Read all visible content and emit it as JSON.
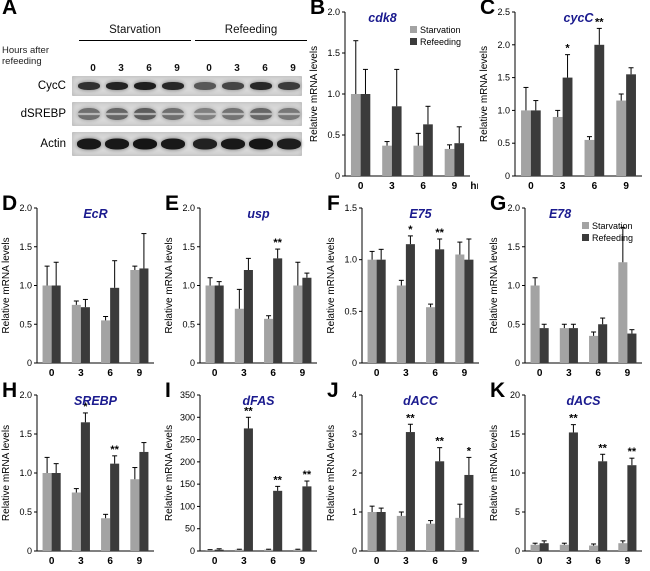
{
  "colors": {
    "starvation": "#a3a3a3",
    "refeeding": "#3b3b3b",
    "title": "#1a1a8e"
  },
  "panel_a": {
    "label": "A",
    "group_headers": [
      "Starvation",
      "Refeeding"
    ],
    "axis_label": "Hours after refeeding",
    "lane_timepoints": [
      "0",
      "3",
      "6",
      "9",
      "0",
      "3",
      "6",
      "9"
    ],
    "blot_rows": [
      "CycC",
      "dSREBP",
      "Actin"
    ]
  },
  "chart_data": [
    {
      "panel": "B",
      "type": "bar",
      "title": "cdk8",
      "ylabel": "Relative mRNA levels",
      "ylim": [
        0,
        2.0
      ],
      "yticks": [
        "0",
        "0.5",
        "1.0",
        "1.5",
        "2.0"
      ],
      "categories": [
        "0",
        "3",
        "6",
        "9"
      ],
      "xsuffix": "hr",
      "show_legend": true,
      "series": [
        {
          "name": "Starvation",
          "values": [
            1.0,
            0.37,
            0.37,
            0.33
          ],
          "errors": [
            0.65,
            0.05,
            0.15,
            0.05
          ]
        },
        {
          "name": "Refeeding",
          "values": [
            1.0,
            0.85,
            0.63,
            0.4
          ],
          "errors": [
            0.3,
            0.45,
            0.22,
            0.2
          ]
        }
      ],
      "stars": [
        "",
        "",
        "",
        ""
      ]
    },
    {
      "panel": "C",
      "type": "bar",
      "title": "cycC",
      "ylabel": "Relative mRNA levels",
      "ylim": [
        0,
        2.5
      ],
      "yticks": [
        "0",
        "0.5",
        "1.0",
        "1.5",
        "2.0",
        "2.5"
      ],
      "categories": [
        "0",
        "3",
        "6",
        "9"
      ],
      "show_legend": false,
      "series": [
        {
          "name": "Starvation",
          "values": [
            1.0,
            0.9,
            0.55,
            1.15
          ],
          "errors": [
            0.35,
            0.1,
            0.05,
            0.1
          ]
        },
        {
          "name": "Refeeding",
          "values": [
            1.0,
            1.5,
            2.0,
            1.55
          ],
          "errors": [
            0.15,
            0.35,
            0.25,
            0.1
          ]
        }
      ],
      "stars": [
        "",
        "*",
        "**",
        ""
      ]
    },
    {
      "panel": "D",
      "type": "bar",
      "title": "EcR",
      "ylabel": "Relative mRNA levels",
      "ylim": [
        0,
        2.0
      ],
      "yticks": [
        "0",
        "0.5",
        "1.0",
        "1.5",
        "2.0"
      ],
      "categories": [
        "0",
        "3",
        "6",
        "9"
      ],
      "show_legend": false,
      "series": [
        {
          "name": "Starvation",
          "values": [
            1.0,
            0.75,
            0.55,
            1.2
          ],
          "errors": [
            0.25,
            0.05,
            0.05,
            0.05
          ]
        },
        {
          "name": "Refeeding",
          "values": [
            1.0,
            0.72,
            0.97,
            1.22
          ],
          "errors": [
            0.3,
            0.1,
            0.35,
            0.45
          ]
        }
      ],
      "stars": [
        "",
        "",
        "",
        ""
      ]
    },
    {
      "panel": "E",
      "type": "bar",
      "title": "usp",
      "ylabel": "Relative mRNA levels",
      "ylim": [
        0,
        2.0
      ],
      "yticks": [
        "0",
        "0.5",
        "1.0",
        "1.5",
        "2.0"
      ],
      "categories": [
        "0",
        "3",
        "6",
        "9"
      ],
      "show_legend": false,
      "series": [
        {
          "name": "Starvation",
          "values": [
            1.0,
            0.7,
            0.57,
            1.0
          ],
          "errors": [
            0.1,
            0.25,
            0.04,
            0.3
          ]
        },
        {
          "name": "Refeeding",
          "values": [
            1.0,
            1.2,
            1.35,
            1.1
          ],
          "errors": [
            0.05,
            0.15,
            0.12,
            0.06
          ]
        }
      ],
      "stars": [
        "",
        "",
        "**",
        ""
      ]
    },
    {
      "panel": "F",
      "type": "bar",
      "title": "E75",
      "ylabel": "Relative mRNA levels",
      "ylim": [
        0,
        1.5
      ],
      "yticks": [
        "0",
        "0.5",
        "1.0",
        "1.5"
      ],
      "categories": [
        "0",
        "3",
        "6",
        "9"
      ],
      "show_legend": false,
      "series": [
        {
          "name": "Starvation",
          "values": [
            1.0,
            0.75,
            0.54,
            1.05
          ],
          "errors": [
            0.08,
            0.05,
            0.03,
            0.12
          ]
        },
        {
          "name": "Refeeding",
          "values": [
            1.0,
            1.15,
            1.1,
            1.0
          ],
          "errors": [
            0.1,
            0.08,
            0.1,
            0.2
          ]
        }
      ],
      "stars": [
        "",
        "*",
        "**",
        ""
      ]
    },
    {
      "panel": "G",
      "type": "bar",
      "title": "E78",
      "ylabel": "Relative mRNA levels",
      "ylim": [
        0,
        2.0
      ],
      "yticks": [
        "0",
        "0.5",
        "1.0",
        "1.5",
        "2.0"
      ],
      "categories": [
        "0",
        "3",
        "6",
        "9"
      ],
      "show_legend": true,
      "series": [
        {
          "name": "Starvation",
          "values": [
            1.0,
            0.45,
            0.35,
            1.3
          ],
          "errors": [
            0.1,
            0.05,
            0.05,
            0.45
          ]
        },
        {
          "name": "Refeeding",
          "values": [
            0.45,
            0.45,
            0.5,
            0.38
          ],
          "errors": [
            0.05,
            0.05,
            0.08,
            0.05
          ]
        }
      ],
      "stars": [
        "",
        "",
        "",
        ""
      ]
    },
    {
      "panel": "H",
      "type": "bar",
      "title": "SREBP",
      "ylabel": "Relative mRNA levels",
      "ylim": [
        0,
        2.0
      ],
      "yticks": [
        "0",
        "0.5",
        "1.0",
        "1.5",
        "2.0"
      ],
      "categories": [
        "0",
        "3",
        "6",
        "9"
      ],
      "show_legend": false,
      "series": [
        {
          "name": "Starvation",
          "values": [
            1.0,
            0.75,
            0.42,
            0.92
          ],
          "errors": [
            0.2,
            0.05,
            0.05,
            0.15
          ]
        },
        {
          "name": "Refeeding",
          "values": [
            1.0,
            1.65,
            1.12,
            1.27
          ],
          "errors": [
            0.12,
            0.12,
            0.1,
            0.12
          ]
        }
      ],
      "stars": [
        "",
        "*",
        "**",
        ""
      ]
    },
    {
      "panel": "I",
      "type": "bar",
      "title": "dFAS",
      "ylabel": "Relative mRNA levels",
      "ylim": [
        0,
        350
      ],
      "yticks": [
        "0",
        "50",
        "100",
        "150",
        "200",
        "250",
        "300",
        "350"
      ],
      "categories": [
        "0",
        "3",
        "6",
        "9"
      ],
      "show_legend": false,
      "series": [
        {
          "name": "Starvation",
          "values": [
            2,
            3,
            3,
            3
          ],
          "errors": [
            1,
            1,
            1,
            1
          ]
        },
        {
          "name": "Refeeding",
          "values": [
            3,
            275,
            135,
            145
          ],
          "errors": [
            2,
            25,
            10,
            12
          ]
        }
      ],
      "stars": [
        "",
        "**",
        "**",
        "**"
      ]
    },
    {
      "panel": "J",
      "type": "bar",
      "title": "dACC",
      "ylabel": "Relative mRNA levels",
      "ylim": [
        0,
        4
      ],
      "yticks": [
        "0",
        "1",
        "2",
        "3",
        "4"
      ],
      "categories": [
        "0",
        "3",
        "6",
        "9"
      ],
      "show_legend": false,
      "series": [
        {
          "name": "Starvation",
          "values": [
            1.0,
            0.9,
            0.7,
            0.85
          ],
          "errors": [
            0.15,
            0.1,
            0.08,
            0.35
          ]
        },
        {
          "name": "Refeeding",
          "values": [
            1.0,
            3.05,
            2.3,
            1.95
          ],
          "errors": [
            0.1,
            0.2,
            0.35,
            0.45
          ]
        }
      ],
      "stars": [
        "",
        "**",
        "**",
        "*"
      ]
    },
    {
      "panel": "K",
      "type": "bar",
      "title": "dACS",
      "ylabel": "Relative mRNA levels",
      "ylim": [
        0,
        20
      ],
      "yticks": [
        "0",
        "5",
        "10",
        "15",
        "20"
      ],
      "categories": [
        "0",
        "3",
        "6",
        "9"
      ],
      "show_legend": false,
      "series": [
        {
          "name": "Starvation",
          "values": [
            0.8,
            0.8,
            0.7,
            1.0
          ],
          "errors": [
            0.2,
            0.2,
            0.2,
            0.3
          ]
        },
        {
          "name": "Refeeding",
          "values": [
            1.0,
            15.2,
            11.5,
            11.0
          ],
          "errors": [
            0.3,
            1.0,
            0.9,
            0.9
          ]
        }
      ],
      "stars": [
        "",
        "**",
        "**",
        "**"
      ]
    }
  ]
}
